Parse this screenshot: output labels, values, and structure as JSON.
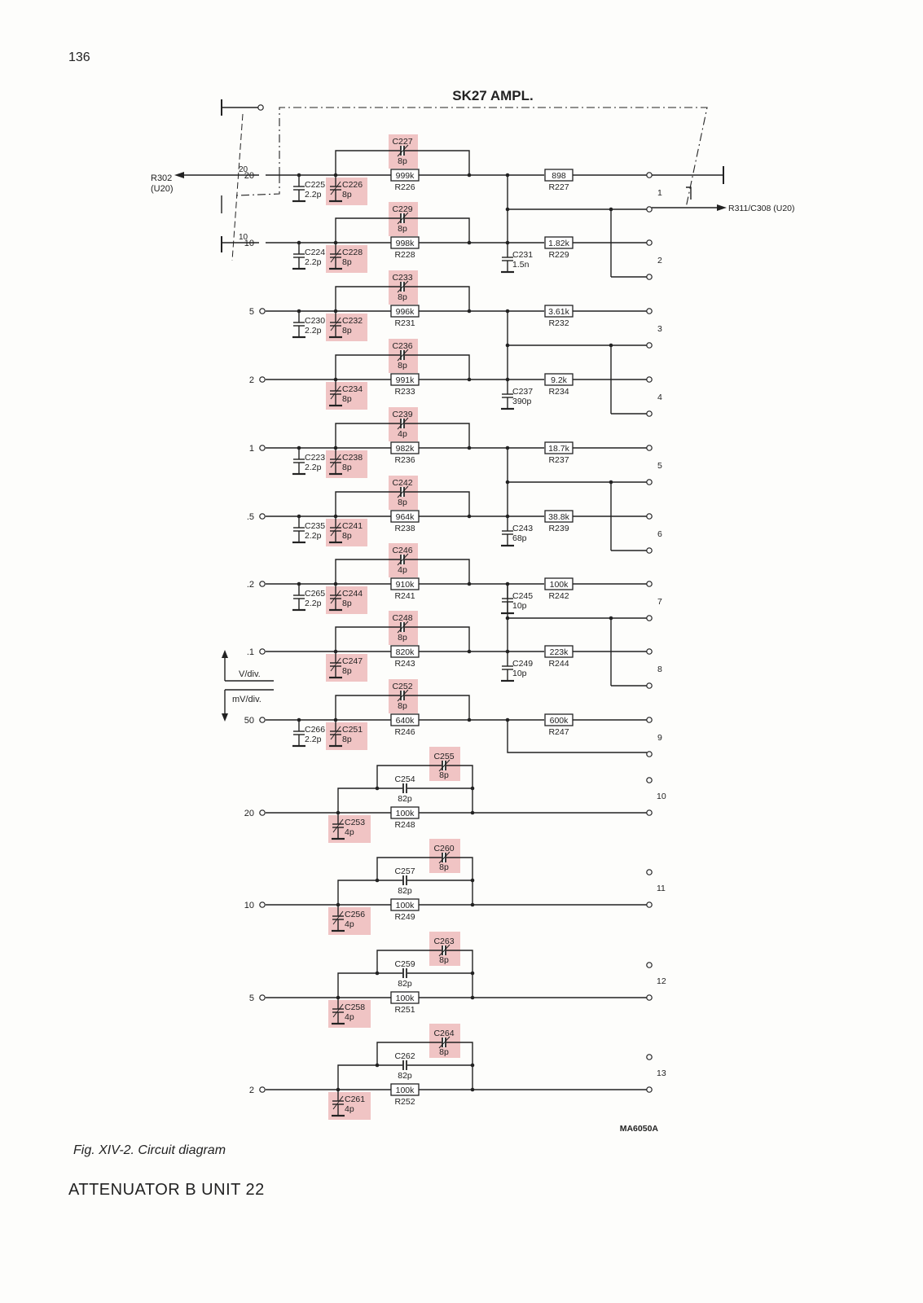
{
  "page_number": "136",
  "caption": "Fig. XIV-2. Circuit diagram",
  "document_title": "ATTENUATOR B  UNIT 22",
  "drawing_code": "MA6050A",
  "diagram": {
    "title": "SK27 AMPL.",
    "input_ref": "R302",
    "input_ref_unit": "(U20)",
    "output_ref": "R311/C308 (U20)",
    "v_div_label": "V/div.",
    "mv_div_label": "mV/div.",
    "switch_positions": [
      "20",
      "10"
    ],
    "highlight_color": "#f0c4c4",
    "section_a": [
      {
        "input": "20",
        "shunt": {
          "name": "C225",
          "value": "2.2p"
        },
        "trim": {
          "name": "C226",
          "value": "8p"
        },
        "fb": {
          "name": "C227",
          "value": "8p"
        },
        "r1": {
          "name": "R226",
          "value": "999k"
        },
        "r2": {
          "name": "R227",
          "value": "898"
        },
        "cout": null,
        "terminal": "1"
      },
      {
        "input": "10",
        "shunt": {
          "name": "C224",
          "value": "2.2p"
        },
        "trim": {
          "name": "C228",
          "value": "8p"
        },
        "fb": {
          "name": "C229",
          "value": "8p"
        },
        "r1": {
          "name": "R228",
          "value": "998k"
        },
        "r2": {
          "name": "R229",
          "value": "1.82k"
        },
        "cout": {
          "name": "C231",
          "value": "1.5n"
        },
        "terminal": "2"
      },
      {
        "input": "5",
        "shunt": {
          "name": "C230",
          "value": "2.2p"
        },
        "trim": {
          "name": "C232",
          "value": "8p"
        },
        "fb": {
          "name": "C233",
          "value": "8p"
        },
        "r1": {
          "name": "R231",
          "value": "996k"
        },
        "r2": {
          "name": "R232",
          "value": "3.61k"
        },
        "cout": null,
        "terminal": "3"
      },
      {
        "input": "2",
        "shunt": null,
        "trim": {
          "name": "C234",
          "value": "8p"
        },
        "fb": {
          "name": "C236",
          "value": "8p"
        },
        "r1": {
          "name": "R233",
          "value": "991k"
        },
        "r2": {
          "name": "R234",
          "value": "9.2k"
        },
        "cout": {
          "name": "C237",
          "value": "390p"
        },
        "terminal": "4"
      },
      {
        "input": "1",
        "shunt": {
          "name": "C223",
          "value": "2.2p"
        },
        "trim": {
          "name": "C238",
          "value": "8p"
        },
        "fb": {
          "name": "C239",
          "value": "4p"
        },
        "r1": {
          "name": "R236",
          "value": "982k"
        },
        "r2": {
          "name": "R237",
          "value": "18.7k"
        },
        "cout": null,
        "terminal": "5"
      },
      {
        "input": ".5",
        "shunt": {
          "name": "C235",
          "value": "2.2p"
        },
        "trim": {
          "name": "C241",
          "value": "8p"
        },
        "fb": {
          "name": "C242",
          "value": "8p"
        },
        "r1": {
          "name": "R238",
          "value": "964k"
        },
        "r2": {
          "name": "R239",
          "value": "38.8k"
        },
        "cout": {
          "name": "C243",
          "value": "68p"
        },
        "terminal": "6"
      },
      {
        "input": ".2",
        "shunt": {
          "name": "C265",
          "value": "2.2p"
        },
        "trim": {
          "name": "C244",
          "value": "8p"
        },
        "fb": {
          "name": "C246",
          "value": "4p"
        },
        "r1": {
          "name": "R241",
          "value": "910k"
        },
        "r2": {
          "name": "R242",
          "value": "100k"
        },
        "cout": {
          "name": "C245",
          "value": "10p"
        },
        "terminal": "7"
      },
      {
        "input": ".1",
        "shunt": null,
        "trim": {
          "name": "C247",
          "value": "8p"
        },
        "fb": {
          "name": "C248",
          "value": "8p"
        },
        "r1": {
          "name": "R243",
          "value": "820k"
        },
        "r2": {
          "name": "R244",
          "value": "223k"
        },
        "cout": {
          "name": "C249",
          "value": "10p"
        },
        "terminal": "8"
      },
      {
        "input": "50",
        "shunt": {
          "name": "C266",
          "value": "2.2p"
        },
        "trim": {
          "name": "C251",
          "value": "8p"
        },
        "fb": {
          "name": "C252",
          "value": "8p"
        },
        "r1": {
          "name": "R246",
          "value": "640k"
        },
        "r2": {
          "name": "R247",
          "value": "600k"
        },
        "cout": null,
        "terminal": "9"
      }
    ],
    "section_b": [
      {
        "input": "20",
        "trim": {
          "name": "C253",
          "value": "4p"
        },
        "cfix": {
          "name": "C254",
          "value": "82p"
        },
        "fb": {
          "name": "C255",
          "value": "8p"
        },
        "r1": {
          "name": "R248",
          "value": "100k"
        },
        "terminal": "10"
      },
      {
        "input": "10",
        "trim": {
          "name": "C256",
          "value": "4p"
        },
        "cfix": {
          "name": "C257",
          "value": "82p"
        },
        "fb": {
          "name": "C260",
          "value": "8p"
        },
        "r1": {
          "name": "R249",
          "value": "100k"
        },
        "terminal": "11"
      },
      {
        "input": "5",
        "trim": {
          "name": "C258",
          "value": "4p"
        },
        "cfix": {
          "name": "C259",
          "value": "82p"
        },
        "fb": {
          "name": "C263",
          "value": "8p"
        },
        "r1": {
          "name": "R251",
          "value": "100k"
        },
        "terminal": "12"
      },
      {
        "input": "2",
        "trim": {
          "name": "C261",
          "value": "4p"
        },
        "cfix": {
          "name": "C262",
          "value": "82p"
        },
        "fb": {
          "name": "C264",
          "value": "8p"
        },
        "r1": {
          "name": "R252",
          "value": "100k"
        },
        "terminal": "13"
      }
    ]
  }
}
